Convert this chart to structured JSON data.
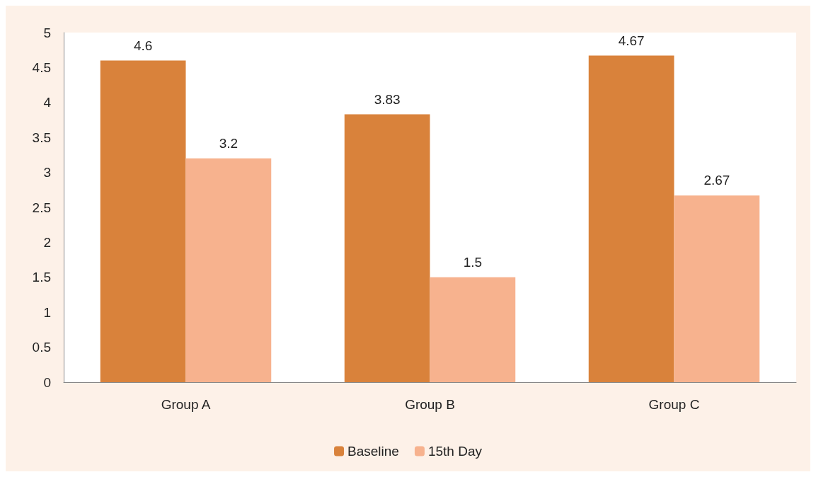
{
  "chart_data": {
    "type": "bar",
    "categories": [
      "Group A",
      "Group B",
      "Group C"
    ],
    "series": [
      {
        "name": "Baseline",
        "color": "#d9823b",
        "values": [
          4.6,
          3.83,
          4.67
        ]
      },
      {
        "name": "15th Day",
        "color": "#f7b28e",
        "values": [
          3.2,
          1.5,
          2.67
        ]
      }
    ],
    "ylim": [
      0,
      5
    ],
    "yticks": [
      0,
      0.5,
      1,
      1.5,
      2,
      2.5,
      3,
      3.5,
      4,
      4.5,
      5
    ],
    "grid": false,
    "legend": "bottom",
    "data_labels": true
  }
}
